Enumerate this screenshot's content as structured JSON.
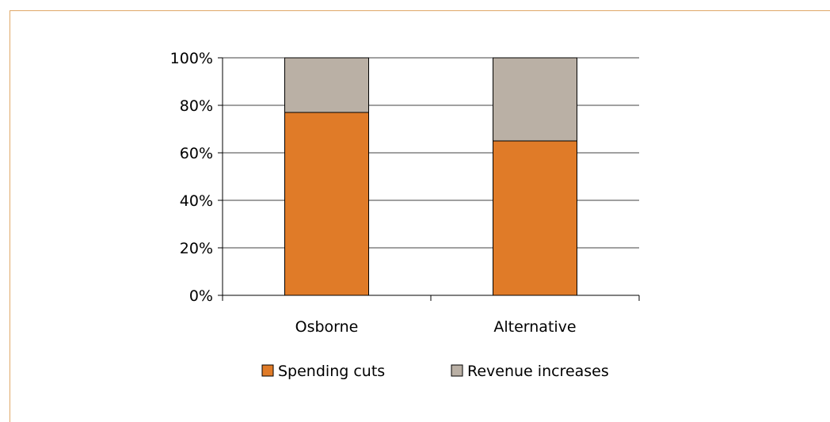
{
  "chart_data": {
    "type": "bar",
    "stacked": true,
    "categories": [
      "Osborne",
      "Alternative"
    ],
    "series": [
      {
        "name": "Spending cuts",
        "values": [
          77,
          65
        ],
        "color": "#e07b28"
      },
      {
        "name": "Revenue increases",
        "values": [
          23,
          35
        ],
        "color": "#bab0a5"
      }
    ],
    "ylim": [
      0,
      100
    ],
    "yticks": [
      0,
      20,
      40,
      60,
      80,
      100
    ],
    "ytick_suffix": "%",
    "grid": true,
    "legend_position": "bottom"
  }
}
